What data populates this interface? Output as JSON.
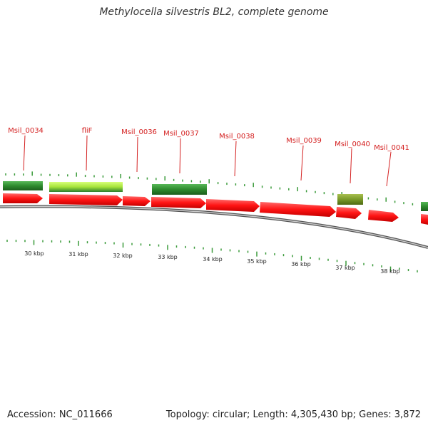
{
  "title": "Methylocella silvestris BL2, complete genome",
  "footer": {
    "accession": "Accession: NC_011666",
    "summary": "Topology: circular; Length: 4,305,430 bp; Genes: 3,872"
  },
  "colors": {
    "cds": "#ff1a1a",
    "gene_dark": "#2e8b2e",
    "gene_light": "#a6e33a",
    "gene_olive": "#7a9a2a",
    "label": "#d42020",
    "backbone": "#888888",
    "tick": "#3a9a3a"
  },
  "scale": {
    "labels": [
      "30 kbp",
      "31 kbp",
      "32 kbp",
      "33 kbp",
      "34 kbp",
      "35 kbp",
      "36 kbp",
      "37 kbp",
      "38 kbp"
    ],
    "values_kbp": [
      30,
      31,
      32,
      33,
      34,
      35,
      36,
      37,
      38
    ]
  },
  "genes": [
    {
      "name": "Msil_0034",
      "start": 29.3,
      "end": 30.2
    },
    {
      "name": "fliF",
      "start": 30.3,
      "end": 31.95
    },
    {
      "name": "Msil_0036",
      "start": 31.95,
      "end": 32.6
    },
    {
      "name": "Msil_0037",
      "start": 32.6,
      "end": 33.85
    },
    {
      "name": "Msil_0038",
      "start": 33.85,
      "end": 35.05
    },
    {
      "name": "Msil_0039",
      "start": 35.05,
      "end": 36.8
    },
    {
      "name": "Msil_0040",
      "start": 36.8,
      "end": 37.4
    },
    {
      "name": "Msil_0041",
      "start": 37.5,
      "end": 38.2
    }
  ]
}
